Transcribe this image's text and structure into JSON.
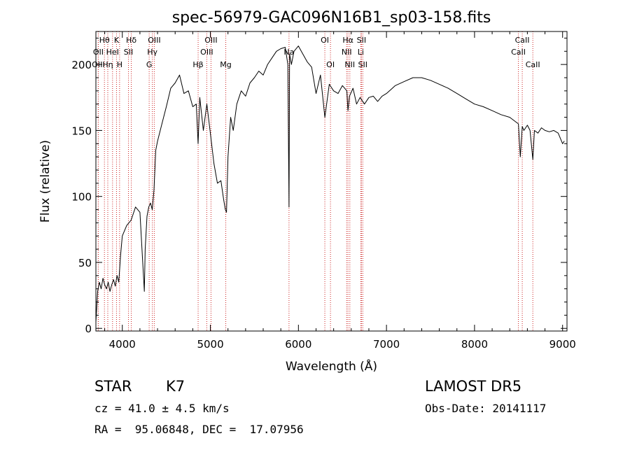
{
  "chart_data": {
    "type": "line",
    "title": "spec-56979-GAC096N16B1_sp03-158.fits",
    "xlabel": "Wavelength (Å)",
    "ylabel": "Flux (relative)",
    "xlim": [
      3700,
      9050
    ],
    "ylim": [
      -2,
      225
    ],
    "xticks": [
      4000,
      5000,
      6000,
      7000,
      8000,
      9000
    ],
    "yticks": [
      0,
      50,
      100,
      150,
      200
    ],
    "grid": false,
    "line_color": "#000000",
    "marker_color": "#cc2222",
    "spectrum": {
      "x": [
        3700,
        3720,
        3740,
        3760,
        3780,
        3800,
        3820,
        3840,
        3860,
        3880,
        3900,
        3920,
        3940,
        3960,
        3980,
        4000,
        4050,
        4100,
        4150,
        4200,
        4250,
        4260,
        4280,
        4300,
        4320,
        4340,
        4360,
        4380,
        4400,
        4450,
        4500,
        4550,
        4600,
        4650,
        4700,
        4750,
        4800,
        4840,
        4861,
        4880,
        4920,
        4960,
        5000,
        5040,
        5080,
        5120,
        5150,
        5170,
        5183,
        5200,
        5230,
        5260,
        5300,
        5350,
        5400,
        5450,
        5500,
        5550,
        5600,
        5650,
        5700,
        5750,
        5800,
        5850,
        5880,
        5893,
        5900,
        5920,
        5950,
        6000,
        6050,
        6100,
        6150,
        6200,
        6250,
        6300,
        6350,
        6400,
        6450,
        6500,
        6550,
        6563,
        6580,
        6620,
        6660,
        6700,
        6750,
        6800,
        6850,
        6900,
        6950,
        7000,
        7050,
        7100,
        7200,
        7300,
        7400,
        7500,
        7600,
        7700,
        7800,
        7900,
        8000,
        8100,
        8200,
        8300,
        8400,
        8498,
        8520,
        8542,
        8560,
        8600,
        8630,
        8662,
        8680,
        8720,
        8760,
        8800,
        8850,
        8900,
        8950,
        9000,
        9020
      ],
      "y": [
        5,
        28,
        35,
        30,
        38,
        33,
        30,
        35,
        28,
        33,
        37,
        32,
        40,
        35,
        55,
        70,
        78,
        82,
        92,
        88,
        28,
        60,
        85,
        92,
        95,
        90,
        105,
        135,
        142,
        155,
        168,
        182,
        186,
        192,
        178,
        180,
        168,
        170,
        140,
        175,
        150,
        170,
        148,
        125,
        110,
        112,
        98,
        90,
        88,
        130,
        160,
        150,
        170,
        180,
        176,
        186,
        190,
        195,
        192,
        200,
        205,
        210,
        212,
        213,
        200,
        92,
        208,
        200,
        210,
        214,
        208,
        202,
        198,
        178,
        192,
        160,
        185,
        180,
        178,
        184,
        180,
        165,
        176,
        182,
        170,
        175,
        170,
        175,
        176,
        172,
        176,
        178,
        181,
        184,
        187,
        190,
        190,
        188,
        185,
        182,
        178,
        174,
        170,
        168,
        165,
        162,
        160,
        155,
        130,
        153,
        150,
        154,
        150,
        128,
        150,
        148,
        152,
        150,
        149,
        150,
        148,
        140,
        142
      ]
    },
    "line_markers": [
      {
        "label": "Hθ",
        "wavelength": 3797,
        "row": 1
      },
      {
        "label": "OII",
        "wavelength": 3727,
        "row": 2
      },
      {
        "label": "OIII",
        "wavelength": 3727,
        "row": 3
      },
      {
        "label": "K",
        "wavelength": 3934,
        "row": 1
      },
      {
        "label": "HeI",
        "wavelength": 3889,
        "row": 2
      },
      {
        "label": "Hη",
        "wavelength": 3835,
        "row": 3
      },
      {
        "label": "Hδ",
        "wavelength": 4102,
        "row": 1
      },
      {
        "label": "SII",
        "wavelength": 4070,
        "row": 2
      },
      {
        "label": "H",
        "wavelength": 3969,
        "row": 3
      },
      {
        "label": "OIII",
        "wavelength": 4363,
        "row": 1
      },
      {
        "label": "Hγ",
        "wavelength": 4341,
        "row": 2
      },
      {
        "label": "G",
        "wavelength": 4305,
        "row": 3
      },
      {
        "label": "Hβ",
        "wavelength": 4861,
        "row": 3
      },
      {
        "label": "OIII",
        "wavelength": 5007,
        "row": 1
      },
      {
        "label": "OIII",
        "wavelength": 4959,
        "row": 2
      },
      {
        "label": "Mg",
        "wavelength": 5175,
        "row": 3
      },
      {
        "label": "Na",
        "wavelength": 5893,
        "row": 2
      },
      {
        "label": "OI",
        "wavelength": 6300,
        "row": 1
      },
      {
        "label": "OI",
        "wavelength": 6364,
        "row": 3
      },
      {
        "label": "Hα",
        "wavelength": 6563,
        "row": 1
      },
      {
        "label": "NII",
        "wavelength": 6548,
        "row": 2
      },
      {
        "label": "NII",
        "wavelength": 6584,
        "row": 3
      },
      {
        "label": "SII",
        "wavelength": 6716,
        "row": 1
      },
      {
        "label": "Li",
        "wavelength": 6708,
        "row": 2
      },
      {
        "label": "SII",
        "wavelength": 6731,
        "row": 3
      },
      {
        "label": "CaII",
        "wavelength": 8542,
        "row": 1
      },
      {
        "label": "CaII",
        "wavelength": 8498,
        "row": 2
      },
      {
        "label": "CaII",
        "wavelength": 8662,
        "row": 3
      }
    ]
  },
  "info": {
    "object_class": "STAR",
    "subclass": "K7",
    "velocity": "cz = 41.0 ± 4.5 km/s",
    "coords": "RA =  95.06848, DEC =  17.07956",
    "survey": "LAMOST DR5",
    "obs_date": "Obs-Date: 20141117"
  }
}
